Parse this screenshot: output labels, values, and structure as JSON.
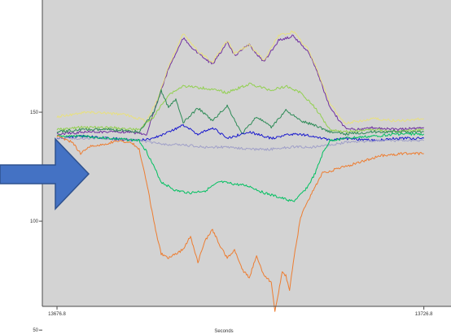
{
  "colors": {
    "page_background": "#ffffff",
    "plot_background": "#d3d3d3",
    "axis": "#4a4a4a",
    "arrow_fill": "#4472c4",
    "arrow_stroke": "#2f528f"
  },
  "annotation": {
    "shape": "right-arrow",
    "direction": "right"
  },
  "chart_data": {
    "type": "line",
    "title": "",
    "xlabel": "Seconds",
    "ylabel": "",
    "xlim": [
      13676.8,
      13726.8
    ],
    "ylim": [
      40,
      200
    ],
    "xticks": [
      {
        "value": 13676.8,
        "label": "13676.8"
      },
      {
        "value": 13726.8,
        "label": "13726.8"
      }
    ],
    "yticks": [
      {
        "value": 50,
        "label": "50"
      },
      {
        "value": 100,
        "label": "100"
      },
      {
        "value": 150,
        "label": "150"
      }
    ],
    "grid": false,
    "legend": "none",
    "series": [
      {
        "color": "#7030a0",
        "x": [
          13676.8,
          13681,
          13686,
          13689,
          13690.5,
          13692,
          13694,
          13696,
          13698,
          13700,
          13701,
          13703,
          13705,
          13707,
          13709,
          13711,
          13712,
          13714,
          13716,
          13718,
          13720,
          13723,
          13726.8
        ],
        "y": [
          140,
          141,
          141,
          140,
          155,
          170,
          184,
          177,
          172,
          182,
          176,
          181,
          173,
          183,
          185,
          178,
          171,
          152,
          143,
          142,
          143,
          142,
          143
        ]
      },
      {
        "color": "#e8e080",
        "x": [
          13676.8,
          13681,
          13686,
          13689,
          13690.5,
          13692,
          13694,
          13696,
          13698,
          13700,
          13701,
          13703,
          13705,
          13707,
          13709,
          13711,
          13712,
          13714,
          13716,
          13718,
          13720,
          13723,
          13726.8
        ],
        "y": [
          148,
          150,
          149,
          146,
          156,
          171,
          186,
          178,
          173,
          183,
          177,
          181,
          174,
          185,
          187,
          179,
          172,
          154,
          145,
          146,
          147,
          146,
          147
        ]
      },
      {
        "color": "#92d050",
        "x": [
          13676.8,
          13680,
          13684,
          13688,
          13690,
          13692,
          13694,
          13697,
          13700,
          13703,
          13706,
          13708,
          13710,
          13712,
          13714,
          13716,
          13720,
          13723,
          13726.8
        ],
        "y": [
          142,
          143,
          143,
          142,
          148,
          158,
          162,
          161,
          159,
          163,
          160,
          162,
          159,
          152,
          142,
          141,
          142,
          141,
          142
        ]
      },
      {
        "color": "#2e8b57",
        "x": [
          13676.8,
          13680,
          13684,
          13688,
          13690,
          13691,
          13692,
          13693,
          13694,
          13696,
          13698,
          13700,
          13702,
          13704,
          13706,
          13708,
          13710,
          13712,
          13714,
          13716,
          13720,
          13723,
          13726.8
        ],
        "y": [
          141,
          142,
          142,
          141,
          150,
          160,
          152,
          156,
          145,
          152,
          146,
          153,
          140,
          148,
          143,
          151,
          146,
          144,
          141,
          140,
          141,
          141,
          141
        ]
      },
      {
        "color": "#1a1acd",
        "x": [
          13676.8,
          13680,
          13684,
          13688,
          13690,
          13692,
          13694,
          13696,
          13698,
          13700,
          13703,
          13706,
          13709,
          13712,
          13714,
          13716,
          13720,
          13723,
          13726.8
        ],
        "y": [
          138,
          139,
          138,
          137,
          138,
          141,
          144,
          140,
          143,
          138,
          141,
          138,
          140,
          139,
          137,
          138,
          137,
          138,
          138
        ]
      },
      {
        "color": "#a0a0c8",
        "x": [
          13676.8,
          13680,
          13684,
          13688,
          13690,
          13692,
          13694,
          13697,
          13700,
          13703,
          13706,
          13709,
          13712,
          13714,
          13716,
          13720,
          13723,
          13726.8
        ],
        "y": [
          138,
          138,
          138,
          137,
          136,
          135,
          135,
          134,
          134,
          133,
          133,
          134,
          134,
          135,
          136,
          137,
          137,
          137
        ]
      },
      {
        "color": "#00c060",
        "x": [
          13676.8,
          13680,
          13684,
          13688,
          13689,
          13691,
          13693,
          13695,
          13697,
          13699,
          13701,
          13703,
          13705,
          13707,
          13709,
          13710,
          13711,
          13712,
          13713,
          13714,
          13716,
          13720,
          13723,
          13726.8
        ],
        "y": [
          139,
          139,
          138,
          137,
          132,
          118,
          114,
          113,
          114,
          118,
          117,
          116,
          113,
          111,
          109,
          112,
          116,
          122,
          131,
          137,
          138,
          139,
          140,
          140
        ]
      },
      {
        "color": "#ed7d31",
        "x": [
          13676.8,
          13679,
          13680,
          13681,
          13683,
          13685,
          13687,
          13688,
          13689,
          13690,
          13690.5,
          13691,
          13692,
          13694,
          13695,
          13696,
          13697,
          13698,
          13699,
          13700,
          13701,
          13702,
          13703,
          13704,
          13705,
          13706,
          13706.5,
          13707,
          13707.5,
          13708,
          13708.5,
          13709,
          13710,
          13711,
          13712,
          13713,
          13715,
          13718,
          13721,
          13724,
          13726.8
        ],
        "y": [
          139,
          136,
          131,
          134,
          135,
          137,
          136,
          133,
          118,
          100,
          92,
          85,
          83,
          87,
          93,
          81,
          91,
          96,
          89,
          83,
          87,
          78,
          74,
          84,
          75,
          72,
          59,
          67,
          77,
          75,
          68,
          81,
          102,
          109,
          116,
          122,
          124,
          127,
          130,
          131,
          131
        ]
      }
    ]
  }
}
